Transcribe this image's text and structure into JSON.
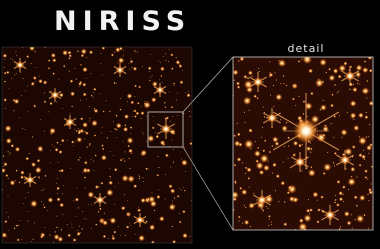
{
  "title": "NIRISS",
  "inset_label": "detail"
}
